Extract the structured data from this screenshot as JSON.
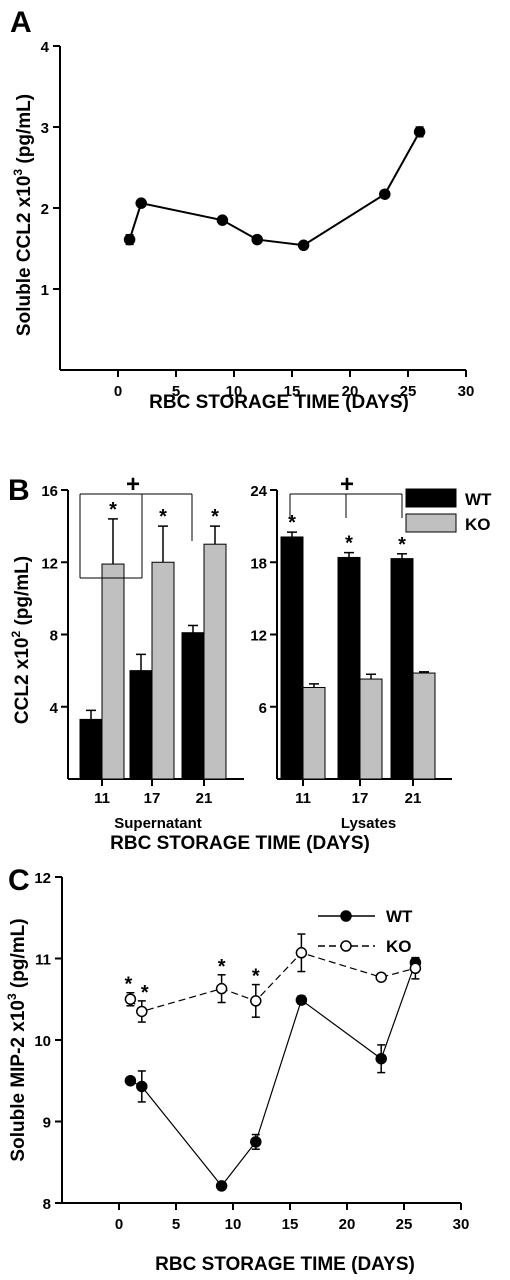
{
  "chart_data": [
    {
      "panel": "A",
      "type": "line",
      "xlabel": "RBC STORAGE TIME (DAYS)",
      "ylabel_main": "Soluble CCL2 x10",
      "ylabel_exp": "3",
      "ylabel_unit": " (pg/mL)",
      "xlim": [
        -5,
        30
      ],
      "ylim": [
        0,
        4
      ],
      "xticks": [
        0,
        5,
        10,
        15,
        20,
        25,
        30
      ],
      "yticks": [
        1,
        2,
        3,
        4
      ],
      "series": [
        {
          "x": [
            1,
            2,
            9,
            12,
            16,
            23,
            26
          ],
          "y": [
            1.61,
            2.06,
            1.85,
            1.61,
            1.54,
            2.17,
            2.94
          ],
          "err": [
            0.06,
            0.03,
            0.03,
            0.04,
            0.02,
            0.04,
            0.06
          ]
        }
      ]
    },
    {
      "panel": "B",
      "type": "bar",
      "xlabel": "RBC STORAGE TIME (DAYS)",
      "ylabel_main": "CCL2 x10",
      "ylabel_exp": "2",
      "ylabel_unit": " (pg/mL)",
      "legend": [
        "WT",
        "KO"
      ],
      "groups": [
        {
          "name": "Supernatant",
          "categories": [
            "11",
            "17",
            "21"
          ],
          "ylim": [
            0,
            16
          ],
          "yticks": [
            4,
            8,
            12,
            16
          ],
          "series": [
            {
              "name": "WT",
              "values": [
                3.3,
                6.0,
                8.1
              ],
              "err": [
                0.5,
                0.9,
                0.4
              ]
            },
            {
              "name": "KO",
              "values": [
                11.9,
                12.0,
                13.0
              ],
              "err": [
                2.5,
                2.0,
                1.0
              ]
            }
          ],
          "stars": [
            "*",
            "*",
            "*"
          ],
          "plus": "+"
        },
        {
          "name": "Lysates",
          "categories": [
            "11",
            "17",
            "21"
          ],
          "ylim": [
            0,
            24
          ],
          "yticks": [
            6,
            12,
            18,
            24
          ],
          "series": [
            {
              "name": "WT",
              "values": [
                20.1,
                18.4,
                18.3
              ],
              "err": [
                0.4,
                0.4,
                0.4
              ]
            },
            {
              "name": "KO",
              "values": [
                7.6,
                8.3,
                8.8
              ],
              "err": [
                0.3,
                0.4,
                0.1
              ]
            }
          ],
          "stars": [
            "*",
            "*",
            "*"
          ],
          "plus": "+"
        }
      ]
    },
    {
      "panel": "C",
      "type": "line",
      "xlabel": "RBC STORAGE TIME (DAYS)",
      "ylabel_main": "Soluble MIP-2 x10",
      "ylabel_exp": "3",
      "ylabel_unit": " (pg/mL)",
      "xlim": [
        -5,
        30
      ],
      "ylim": [
        8,
        12
      ],
      "xticks": [
        0,
        5,
        10,
        15,
        20,
        25,
        30
      ],
      "yticks": [
        8,
        9,
        10,
        11,
        12
      ],
      "legend": [
        "WT",
        "KO"
      ],
      "series": [
        {
          "name": "WT",
          "x": [
            1,
            2,
            9,
            12,
            16,
            23,
            26
          ],
          "y": [
            9.5,
            9.43,
            8.21,
            8.75,
            10.49,
            9.77,
            10.95
          ],
          "err": [
            0.04,
            0.19,
            0.03,
            0.09,
            0.05,
            0.17,
            0.06
          ]
        },
        {
          "name": "KO",
          "x": [
            1,
            2,
            9,
            12,
            16,
            23,
            26
          ],
          "y": [
            10.5,
            10.35,
            10.63,
            10.48,
            11.07,
            10.77,
            10.88
          ],
          "err": [
            0.08,
            0.13,
            0.17,
            0.2,
            0.23,
            0.04,
            0.13
          ]
        }
      ],
      "stars": [
        {
          "x": 1,
          "label": "*"
        },
        {
          "x": 2,
          "label": "*"
        },
        {
          "x": 9,
          "label": "*"
        },
        {
          "x": 12,
          "label": "*"
        }
      ]
    }
  ]
}
